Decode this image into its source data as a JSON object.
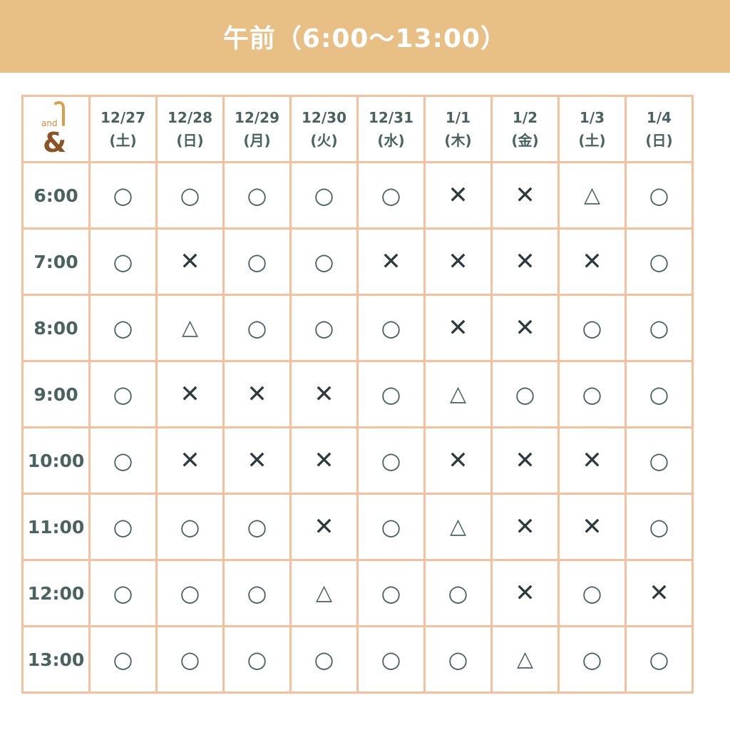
{
  "header": {
    "title": "午前（6:00〜13:00）"
  },
  "logo": {
    "text": "and &"
  },
  "colors": {
    "header_bg": "#E8BF84",
    "grid_border": "#F5C09B",
    "text": "#4A6360",
    "cross": "#2F3A3E"
  },
  "legend_symbols": {
    "available": "○",
    "few": "△",
    "full": "✕"
  },
  "columns": [
    {
      "date": "12/27",
      "day": "(土)"
    },
    {
      "date": "12/28",
      "day": "(日)"
    },
    {
      "date": "12/29",
      "day": "(月)"
    },
    {
      "date": "12/30",
      "day": "(火)"
    },
    {
      "date": "12/31",
      "day": "(水)"
    },
    {
      "date": "1/1",
      "day": "(木)"
    },
    {
      "date": "1/2",
      "day": "(金)"
    },
    {
      "date": "1/3",
      "day": "(土)"
    },
    {
      "date": "1/4",
      "day": "(日)"
    }
  ],
  "rows": [
    {
      "time": "6:00",
      "cells": [
        "○",
        "○",
        "○",
        "○",
        "○",
        "✕",
        "✕",
        "△",
        "○"
      ]
    },
    {
      "time": "7:00",
      "cells": [
        "○",
        "✕",
        "○",
        "○",
        "✕",
        "✕",
        "✕",
        "✕",
        "○"
      ]
    },
    {
      "time": "8:00",
      "cells": [
        "○",
        "△",
        "○",
        "○",
        "○",
        "✕",
        "✕",
        "○",
        "○"
      ]
    },
    {
      "time": "9:00",
      "cells": [
        "○",
        "✕",
        "✕",
        "✕",
        "○",
        "△",
        "○",
        "○",
        "○"
      ]
    },
    {
      "time": "10:00",
      "cells": [
        "○",
        "✕",
        "✕",
        "✕",
        "○",
        "✕",
        "✕",
        "✕",
        "○"
      ]
    },
    {
      "time": "11:00",
      "cells": [
        "○",
        "○",
        "○",
        "✕",
        "○",
        "△",
        "✕",
        "✕",
        "○"
      ]
    },
    {
      "time": "12:00",
      "cells": [
        "○",
        "○",
        "○",
        "△",
        "○",
        "○",
        "✕",
        "○",
        "✕"
      ]
    },
    {
      "time": "13:00",
      "cells": [
        "○",
        "○",
        "○",
        "○",
        "○",
        "○",
        "△",
        "○",
        "○"
      ]
    }
  ]
}
